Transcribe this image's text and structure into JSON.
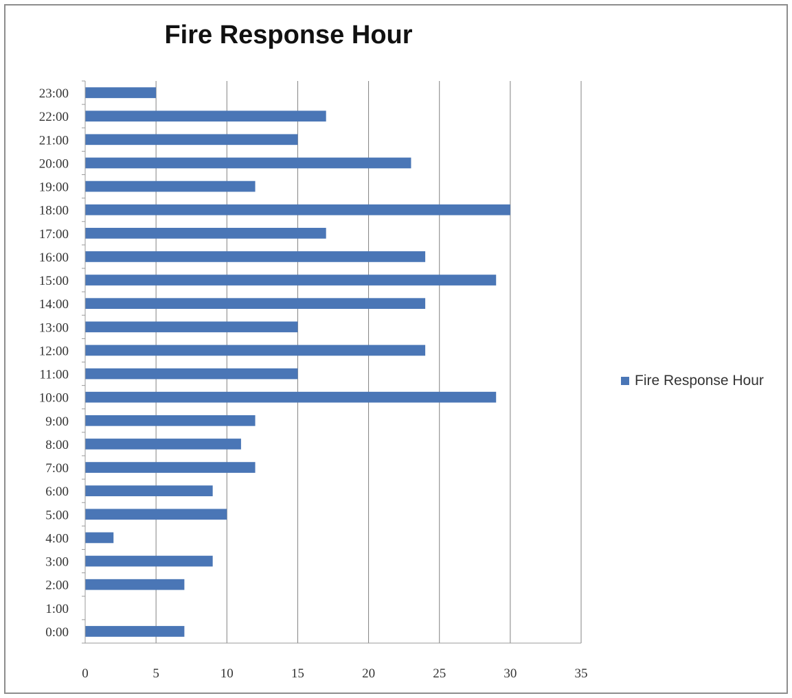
{
  "chart_data": {
    "type": "bar",
    "orientation": "horizontal",
    "title": "Fire Response Hour",
    "xlabel": "",
    "ylabel": "",
    "categories": [
      "0:00",
      "1:00",
      "2:00",
      "3:00",
      "4:00",
      "5:00",
      "6:00",
      "7:00",
      "8:00",
      "9:00",
      "10:00",
      "11:00",
      "12:00",
      "13:00",
      "14:00",
      "15:00",
      "16:00",
      "17:00",
      "18:00",
      "19:00",
      "20:00",
      "21:00",
      "22:00",
      "23:00"
    ],
    "series": [
      {
        "name": "Fire Response Hour",
        "values": [
          7,
          0,
          7,
          9,
          2,
          10,
          9,
          12,
          11,
          12,
          29,
          15,
          24,
          15,
          24,
          29,
          24,
          17,
          30,
          12,
          23,
          15,
          17,
          5
        ]
      }
    ],
    "xlim": [
      0,
      35
    ],
    "xticks": [
      "0",
      "5",
      "10",
      "15",
      "20",
      "25",
      "30",
      "35"
    ],
    "grid": true,
    "legend_position": "right",
    "colors": {
      "bar": "#4a76b6",
      "grid": "#808080",
      "axis": "#9a9a9a"
    }
  }
}
